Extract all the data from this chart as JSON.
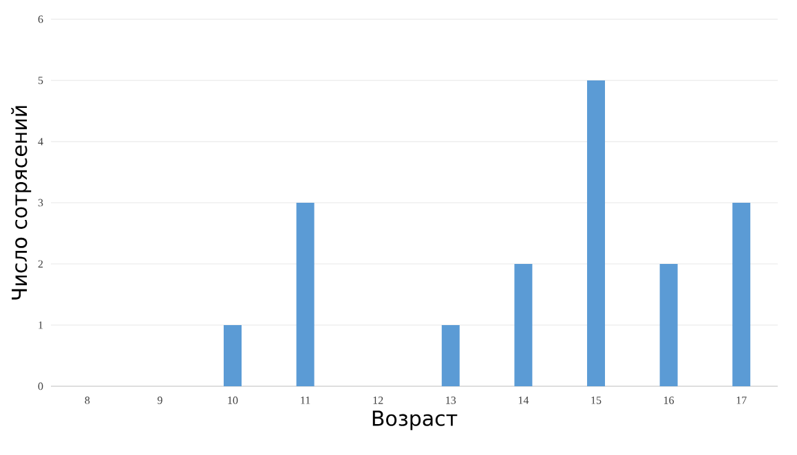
{
  "chart_data": {
    "type": "bar",
    "xlabel": "Возраст",
    "ylabel": "Число сотрясений",
    "categories": [
      "8",
      "9",
      "10",
      "11",
      "12",
      "13",
      "14",
      "15",
      "16",
      "17"
    ],
    "values": [
      0,
      0,
      1,
      3,
      0,
      1,
      2,
      5,
      2,
      3
    ],
    "color": "#5b9bd5",
    "ylim": [
      0,
      6
    ],
    "yticks": [
      0,
      1,
      2,
      3,
      4,
      5,
      6
    ],
    "grid": "y"
  }
}
